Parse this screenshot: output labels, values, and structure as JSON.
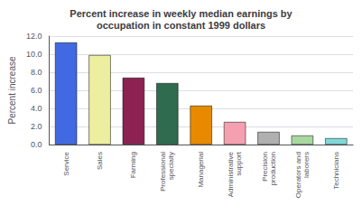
{
  "chart_data": {
    "type": "bar",
    "title": "Percent increase in weekly median earnings by\noccupation in constant 1999 dollars",
    "ylabel": "Percent increase",
    "categories": [
      "Service",
      "Sales",
      "Farming",
      "Professional\nspecialty",
      "Managerial",
      "Administrative\nsupport",
      "Precision\nproduction",
      "Operators and\nlaborers",
      "Technicians"
    ],
    "values": [
      11.3,
      9.9,
      7.4,
      6.8,
      4.3,
      2.5,
      1.4,
      1.0,
      0.7
    ],
    "colors": [
      "#4169e1",
      "#eeeea0",
      "#8b2252",
      "#2e6b4f",
      "#e88a00",
      "#f4a0b0",
      "#b0b0b0",
      "#a8d8a0",
      "#80d8d8"
    ],
    "ylim": [
      0,
      12.0
    ],
    "yticks": [
      {
        "value": 0,
        "label": "0.0"
      },
      {
        "value": 2,
        "label": "2.0"
      },
      {
        "value": 4,
        "label": "4.0"
      },
      {
        "value": 6,
        "label": "6.0"
      },
      {
        "value": 8,
        "label": "8.0"
      },
      {
        "value": 10,
        "label": "10.0"
      },
      {
        "value": 12,
        "label": "12.0"
      }
    ],
    "grid": true
  }
}
